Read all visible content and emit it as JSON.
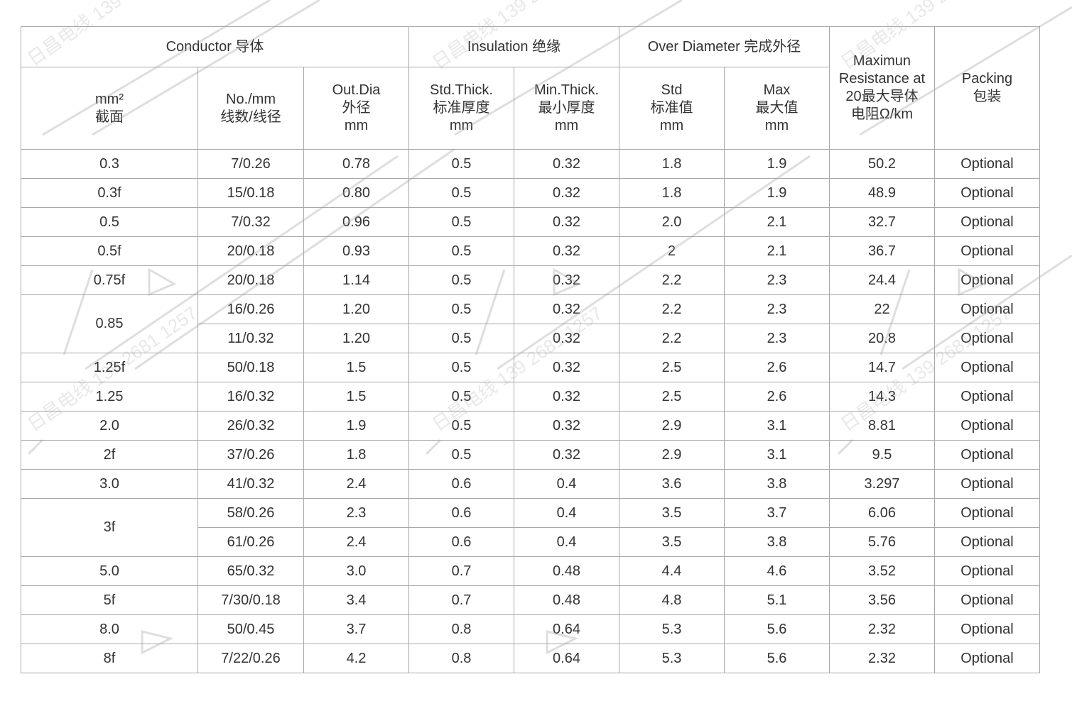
{
  "watermark": "日昌电线 139 2681 1257",
  "header": {
    "conductor": "Conductor 导体",
    "insulation": "Insulation 绝缘",
    "over_diameter": "Over Diameter 完成外径",
    "resistance": [
      "Maximun",
      "Resistance at",
      "20最大导体",
      "电阻Ω/km"
    ],
    "packing": [
      "Packing",
      "包装"
    ],
    "section": [
      "mm²",
      "截面"
    ],
    "strands": [
      "No./mm",
      "线数/线径"
    ],
    "out_dia": [
      "Out.Dia",
      "外径",
      "mm"
    ],
    "std_thick": [
      "Std.Thick.",
      "标准厚度",
      "mm"
    ],
    "min_thick": [
      "Min.Thick.",
      "最小厚度",
      "mm"
    ],
    "std": [
      "Std",
      "标准值",
      "mm"
    ],
    "max": [
      "Max",
      "最大值",
      "mm"
    ]
  },
  "rows": [
    {
      "section": "0.3",
      "strands": "7/0.26",
      "out_dia": "0.78",
      "std_thick": "0.5",
      "min_thick": "0.32",
      "std": "1.8",
      "max": "1.9",
      "resistance": "50.2",
      "packing": "Optional"
    },
    {
      "section": "0.3f",
      "strands": "15/0.18",
      "out_dia": "0.80",
      "std_thick": "0.5",
      "min_thick": "0.32",
      "std": "1.8",
      "max": "1.9",
      "resistance": "48.9",
      "packing": "Optional"
    },
    {
      "section": "0.5",
      "strands": "7/0.32",
      "out_dia": "0.96",
      "std_thick": "0.5",
      "min_thick": "0.32",
      "std": "2.0",
      "max": "2.1",
      "resistance": "32.7",
      "packing": "Optional"
    },
    {
      "section": "0.5f",
      "strands": "20/0.18",
      "out_dia": "0.93",
      "std_thick": "0.5",
      "min_thick": "0.32",
      "std": "2",
      "max": "2.1",
      "resistance": "36.7",
      "packing": "Optional"
    },
    {
      "section": "0.75f",
      "strands": "20/0.18",
      "out_dia": "1.14",
      "std_thick": "0.5",
      "min_thick": "0.32",
      "std": "2.2",
      "max": "2.3",
      "resistance": "24.4",
      "packing": "Optional"
    },
    {
      "section": "0.85",
      "rowspan": 2,
      "strands": "16/0.26",
      "out_dia": "1.20",
      "std_thick": "0.5",
      "min_thick": "0.32",
      "std": "2.2",
      "max": "2.3",
      "resistance": "22",
      "packing": "Optional"
    },
    {
      "strands": "11/0.32",
      "out_dia": "1.20",
      "std_thick": "0.5",
      "min_thick": "0.32",
      "std": "2.2",
      "max": "2.3",
      "resistance": "20.8",
      "packing": "Optional"
    },
    {
      "section": "1.25f",
      "strands": "50/0.18",
      "out_dia": "1.5",
      "std_thick": "0.5",
      "min_thick": "0.32",
      "std": "2.5",
      "max": "2.6",
      "resistance": "14.7",
      "packing": "Optional"
    },
    {
      "section": "1.25",
      "strands": "16/0.32",
      "out_dia": "1.5",
      "std_thick": "0.5",
      "min_thick": "0.32",
      "std": "2.5",
      "max": "2.6",
      "resistance": "14.3",
      "packing": "Optional"
    },
    {
      "section": "2.0",
      "strands": "26/0.32",
      "out_dia": "1.9",
      "std_thick": "0.5",
      "min_thick": "0.32",
      "std": "2.9",
      "max": "3.1",
      "resistance": "8.81",
      "packing": "Optional"
    },
    {
      "section": "2f",
      "strands": "37/0.26",
      "out_dia": "1.8",
      "std_thick": "0.5",
      "min_thick": "0.32",
      "std": "2.9",
      "max": "3.1",
      "resistance": "9.5",
      "packing": "Optional"
    },
    {
      "section": "3.0",
      "strands": "41/0.32",
      "out_dia": "2.4",
      "std_thick": "0.6",
      "min_thick": "0.4",
      "std": "3.6",
      "max": "3.8",
      "resistance": "3.297",
      "packing": "Optional"
    },
    {
      "section": "3f",
      "rowspan": 2,
      "strands": "58/0.26",
      "out_dia": "2.3",
      "std_thick": "0.6",
      "min_thick": "0.4",
      "std": "3.5",
      "max": "3.7",
      "resistance": "6.06",
      "packing": "Optional"
    },
    {
      "strands": "61/0.26",
      "out_dia": "2.4",
      "std_thick": "0.6",
      "min_thick": "0.4",
      "std": "3.5",
      "max": "3.8",
      "resistance": "5.76",
      "packing": "Optional"
    },
    {
      "section": "5.0",
      "strands": "65/0.32",
      "out_dia": "3.0",
      "std_thick": "0.7",
      "min_thick": "0.48",
      "std": "4.4",
      "max": "4.6",
      "resistance": "3.52",
      "packing": "Optional"
    },
    {
      "section": "5f",
      "strands": "7/30/0.18",
      "out_dia": "3.4",
      "std_thick": "0.7",
      "min_thick": "0.48",
      "std": "4.8",
      "max": "5.1",
      "resistance": "3.56",
      "packing": "Optional"
    },
    {
      "section": "8.0",
      "strands": "50/0.45",
      "out_dia": "3.7",
      "std_thick": "0.8",
      "min_thick": "0.64",
      "std": "5.3",
      "max": "5.6",
      "resistance": "2.32",
      "packing": "Optional"
    },
    {
      "section": "8f",
      "strands": "7/22/0.26",
      "out_dia": "4.2",
      "std_thick": "0.8",
      "min_thick": "0.64",
      "std": "5.3",
      "max": "5.6",
      "resistance": "2.32",
      "packing": "Optional"
    }
  ]
}
